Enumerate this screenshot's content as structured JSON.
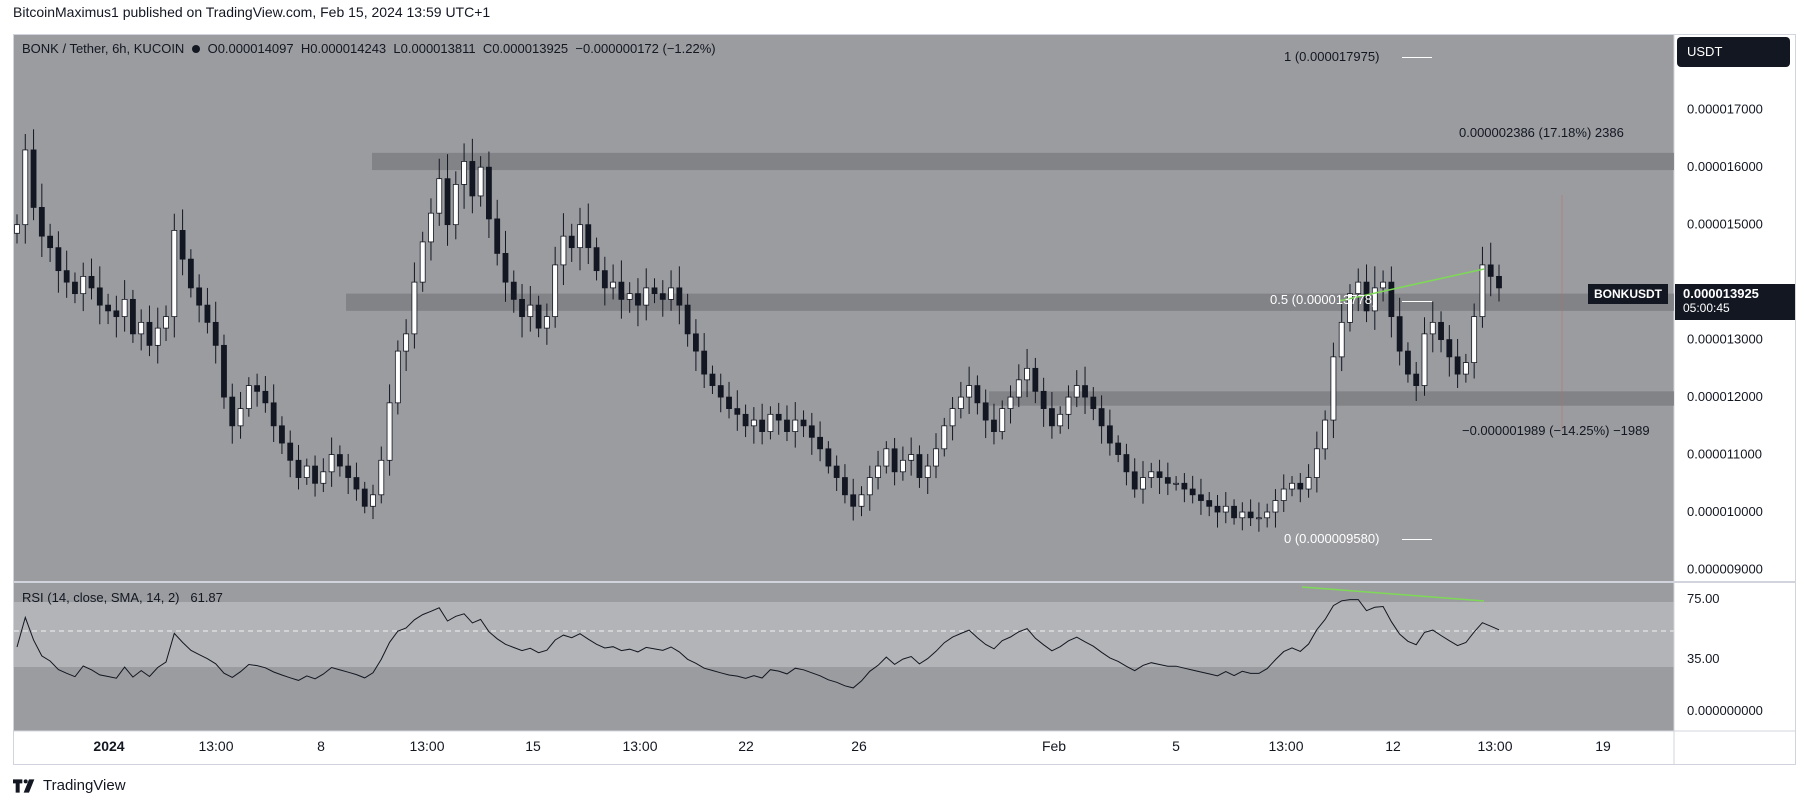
{
  "header": {
    "caption": "BitcoinMaximus1 published on TradingView.com, Feb 15, 2024 13:59 UTC+1"
  },
  "footer": {
    "brand": "TradingView"
  },
  "symbol_legend": {
    "title": "BONK / Tether, 6h, KUCOIN",
    "open_key": "O",
    "open": "0.000014097",
    "high_key": "H",
    "high": "0.000014243",
    "low_key": "L",
    "low": "0.000013811",
    "close_key": "C",
    "close": "0.000013925",
    "change": "−0.000000172 (−1.22%)"
  },
  "currency_button": "USDT",
  "ticker_badge": "BONKUSDT",
  "last_price": "0.000013925",
  "countdown": "05:00:45",
  "price_axis": [
    "0.000017000",
    "0.000016000",
    "0.000015000",
    "0.000013000",
    "0.000012000",
    "0.000011000",
    "0.000010000",
    "0.000009000"
  ],
  "rsi_axis": [
    "75.00",
    "35.00",
    "0.000000000"
  ],
  "time_axis": [
    {
      "label": "2024",
      "bold": true
    },
    {
      "label": "13:00"
    },
    {
      "label": "8"
    },
    {
      "label": "13:00"
    },
    {
      "label": "15"
    },
    {
      "label": "13:00"
    },
    {
      "label": "22"
    },
    {
      "label": "26"
    },
    {
      "label": "Feb"
    },
    {
      "label": "5"
    },
    {
      "label": "13:00"
    },
    {
      "label": "12"
    },
    {
      "label": "13:00"
    },
    {
      "label": "19"
    }
  ],
  "fib_labels": {
    "level_1": "1 (0.000017975)",
    "level_05": "0.5 (0.000013778)",
    "level_0": "0 (0.000009580)"
  },
  "measure_labels": {
    "up": "0.000002386 (17.18%) 2386",
    "down": "−0.000001989 (−14.25%) −1989"
  },
  "rsi_legend": {
    "title": "RSI (14, close, SMA, 14, 2)",
    "value": "61.87"
  },
  "colors": {
    "pane_bg": "#9b9ca0",
    "rsi_band": "#b3b4b7",
    "zone": "#7e7f83",
    "up_candle": "#ffffff",
    "down_candle": "#131722",
    "divergence": "#7ed957",
    "badge_bg": "#131722",
    "rsi_line": "#131722"
  },
  "chart_data": {
    "type": "candlestick",
    "symbol": "BONK / Tether",
    "interval": "6h",
    "exchange": "KUCOIN",
    "ylim": [
      8.8e-06,
      1.83e-05
    ],
    "support_resistance_zones": [
      [
        1.595e-05,
        1.625e-05
      ],
      [
        1.35e-05,
        1.38e-05
      ],
      [
        1.185e-05,
        1.21e-05
      ]
    ],
    "fib_levels": [
      {
        "ratio": 1,
        "price": 1.7975e-05
      },
      {
        "ratio": 0.5,
        "price": 1.3778e-05
      },
      {
        "ratio": 0,
        "price": 9.58e-06
      }
    ],
    "candles_close": [
      1.5e-05,
      1.63e-05,
      1.53e-05,
      1.48e-05,
      1.46e-05,
      1.42e-05,
      1.4e-05,
      1.38e-05,
      1.41e-05,
      1.39e-05,
      1.36e-05,
      1.35e-05,
      1.34e-05,
      1.37e-05,
      1.31e-05,
      1.33e-05,
      1.29e-05,
      1.32e-05,
      1.34e-05,
      1.49e-05,
      1.44e-05,
      1.39e-05,
      1.36e-05,
      1.33e-05,
      1.29e-05,
      1.2e-05,
      1.15e-05,
      1.18e-05,
      1.22e-05,
      1.21e-05,
      1.19e-05,
      1.15e-05,
      1.12e-05,
      1.09e-05,
      1.06e-05,
      1.08e-05,
      1.05e-05,
      1.07e-05,
      1.1e-05,
      1.08e-05,
      1.06e-05,
      1.04e-05,
      1.01e-05,
      1.03e-05,
      1.09e-05,
      1.19e-05,
      1.28e-05,
      1.31e-05,
      1.4e-05,
      1.47e-05,
      1.52e-05,
      1.58e-05,
      1.5e-05,
      1.57e-05,
      1.61e-05,
      1.55e-05,
      1.6e-05,
      1.51e-05,
      1.45e-05,
      1.4e-05,
      1.37e-05,
      1.34e-05,
      1.36e-05,
      1.32e-05,
      1.34e-05,
      1.43e-05,
      1.48e-05,
      1.46e-05,
      1.5e-05,
      1.46e-05,
      1.42e-05,
      1.39e-05,
      1.4e-05,
      1.37e-05,
      1.38e-05,
      1.36e-05,
      1.39e-05,
      1.38e-05,
      1.37e-05,
      1.39e-05,
      1.36e-05,
      1.31e-05,
      1.28e-05,
      1.24e-05,
      1.22e-05,
      1.2e-05,
      1.18e-05,
      1.17e-05,
      1.15e-05,
      1.16e-05,
      1.14e-05,
      1.17e-05,
      1.16e-05,
      1.14e-05,
      1.16e-05,
      1.15e-05,
      1.13e-05,
      1.11e-05,
      1.08e-05,
      1.06e-05,
      1.03e-05,
      1.01e-05,
      1.03e-05,
      1.06e-05,
      1.08e-05,
      1.11e-05,
      1.07e-05,
      1.09e-05,
      1.1e-05,
      1.06e-05,
      1.08e-05,
      1.11e-05,
      1.15e-05,
      1.18e-05,
      1.2e-05,
      1.22e-05,
      1.19e-05,
      1.16e-05,
      1.14e-05,
      1.18e-05,
      1.2e-05,
      1.23e-05,
      1.25e-05,
      1.21e-05,
      1.18e-05,
      1.15e-05,
      1.17e-05,
      1.2e-05,
      1.22e-05,
      1.2e-05,
      1.18e-05,
      1.15e-05,
      1.12e-05,
      1.1e-05,
      1.07e-05,
      1.04e-05,
      1.06e-05,
      1.07e-05,
      1.06e-05,
      1.05e-05,
      1.05e-05,
      1.04e-05,
      1.03e-05,
      1.02e-05,
      1.01e-05,
      1e-05,
      1.01e-05,
      9.9e-06,
      1e-05,
      9.9e-06,
      9.9e-06,
      1e-05,
      1.02e-05,
      1.04e-05,
      1.05e-05,
      1.04e-05,
      1.06e-05,
      1.11e-05,
      1.16e-05,
      1.27e-05,
      1.33e-05,
      1.38e-05,
      1.4e-05,
      1.35e-05,
      1.39e-05,
      1.4e-05,
      1.34e-05,
      1.28e-05,
      1.24e-05,
      1.22e-05,
      1.31e-05,
      1.33e-05,
      1.3e-05,
      1.27e-05,
      1.24e-05,
      1.26e-05,
      1.34e-05,
      1.43e-05,
      1.41e-05,
      1.39e-05
    ],
    "rsi": {
      "name": "RSI (14, close, SMA, 14, 2)",
      "last": 61.87,
      "upper_band": 75,
      "lower_band": 35,
      "mid": 55
    },
    "divergence_lines": "bearish divergence: price higher high, RSI lower high"
  }
}
